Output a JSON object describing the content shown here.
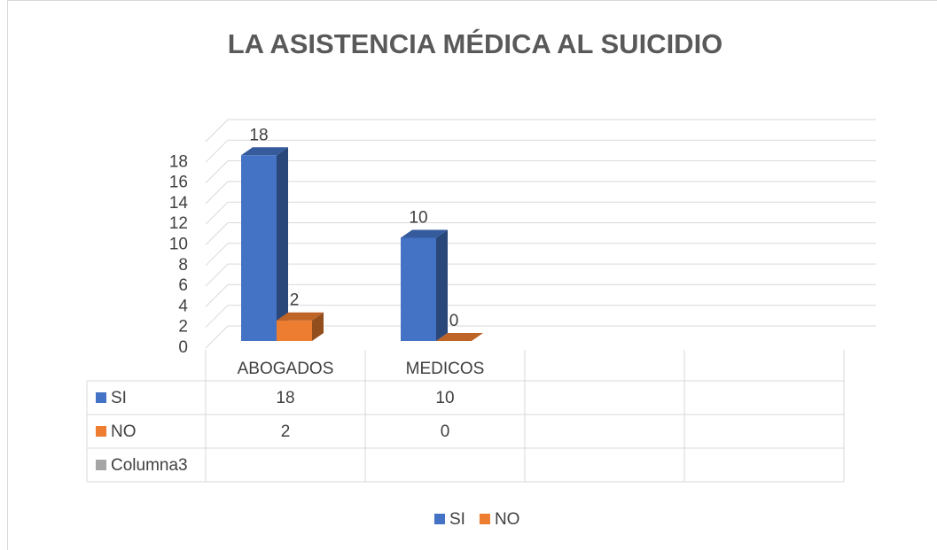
{
  "chart_data": {
    "type": "bar3d",
    "title": "LA ASISTENCIA MÉDICA AL SUICIDIO",
    "categories": [
      "ABOGADOS",
      "MEDICOS",
      null,
      null
    ],
    "series": [
      {
        "name": "SI",
        "color": "#4472c4",
        "values": [
          18,
          10,
          null,
          null
        ]
      },
      {
        "name": "NO",
        "color": "#ed7d31",
        "values": [
          2,
          0,
          null,
          null
        ]
      },
      {
        "name": "Columna3",
        "color": "#a5a5a5",
        "values": [
          null,
          null,
          null,
          null
        ]
      }
    ],
    "ylim": [
      0,
      20
    ],
    "yticks": [
      0,
      2,
      4,
      6,
      8,
      10,
      12,
      14,
      16,
      18
    ],
    "grid": true,
    "data_table": true,
    "legend": "bottom"
  }
}
